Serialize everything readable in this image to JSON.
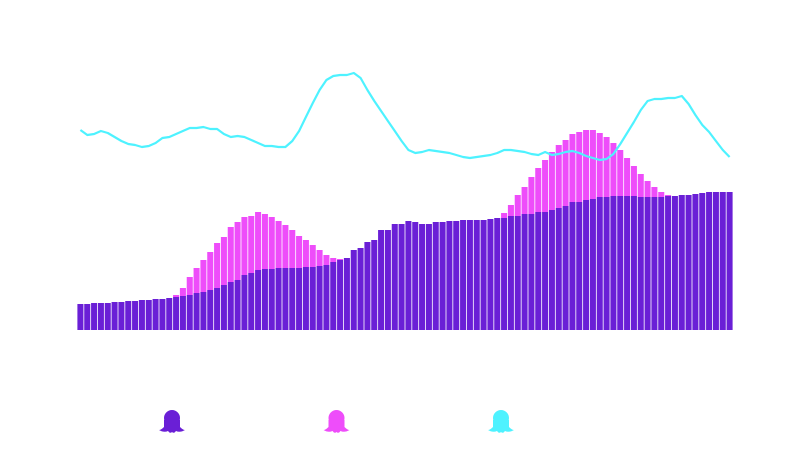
{
  "chart_data": {
    "type": "bar",
    "stacked": true,
    "ylim": [
      0,
      260
    ],
    "series": [
      {
        "color": "#6a1fd6",
        "values": [
          26,
          26,
          27,
          27,
          27,
          28,
          28,
          29,
          29,
          30,
          30,
          31,
          31,
          32,
          33,
          34,
          35,
          37,
          38,
          40,
          42,
          45,
          48,
          50,
          55,
          57,
          60,
          61,
          61,
          62,
          62,
          62,
          62,
          63,
          63,
          64,
          65,
          68,
          70,
          72,
          80,
          82,
          88,
          90,
          100,
          100,
          106,
          106,
          109,
          108,
          106,
          106,
          108,
          108,
          109,
          109,
          110,
          110,
          110,
          110,
          111,
          112,
          112,
          114,
          114,
          116,
          116,
          118,
          118,
          120,
          122,
          124,
          128,
          128,
          130,
          131,
          133,
          133,
          134,
          134,
          134,
          134,
          133,
          133,
          133,
          133,
          134,
          134,
          135,
          135,
          136,
          137,
          138,
          138,
          138,
          138
        ]
      },
      {
        "color": "#ee4dfa",
        "values": [
          0,
          0,
          0,
          0,
          0,
          0,
          0,
          0,
          0,
          0,
          0,
          0,
          0,
          0,
          2,
          8,
          18,
          25,
          32,
          38,
          45,
          48,
          55,
          58,
          58,
          57,
          58,
          55,
          52,
          47,
          43,
          38,
          32,
          27,
          22,
          16,
          10,
          4,
          1,
          0,
          0,
          0,
          0,
          0,
          0,
          0,
          0,
          0,
          0,
          0,
          0,
          0,
          0,
          0,
          0,
          0,
          0,
          0,
          0,
          0,
          0,
          0,
          5,
          11,
          21,
          27,
          37,
          44,
          52,
          58,
          63,
          66,
          68,
          70,
          70,
          69,
          64,
          60,
          53,
          46,
          38,
          30,
          23,
          16,
          10,
          5,
          1,
          0,
          0,
          0,
          0,
          0,
          0,
          0,
          0,
          0
        ]
      },
      {
        "type": "line",
        "color": "#4ef2ff",
        "values": [
          200,
          195,
          196,
          199,
          197,
          193,
          189,
          186,
          185,
          183,
          184,
          187,
          192,
          193,
          196,
          199,
          202,
          202,
          203,
          201,
          201,
          196,
          193,
          194,
          193,
          190,
          187,
          184,
          184,
          183,
          183,
          189,
          199,
          213,
          227,
          240,
          250,
          254,
          255,
          255,
          257,
          252,
          240,
          229,
          219,
          209,
          199,
          189,
          180,
          177,
          178,
          180,
          179,
          178,
          177,
          175,
          173,
          172,
          173,
          174,
          175,
          177,
          180,
          180,
          179,
          178,
          176,
          175,
          178,
          175,
          176,
          178,
          179,
          177,
          174,
          172,
          170,
          171,
          176,
          186,
          197,
          208,
          220,
          229,
          231,
          231,
          232,
          232,
          234,
          226,
          215,
          205,
          198,
          189,
          180,
          173
        ]
      }
    ]
  }
}
